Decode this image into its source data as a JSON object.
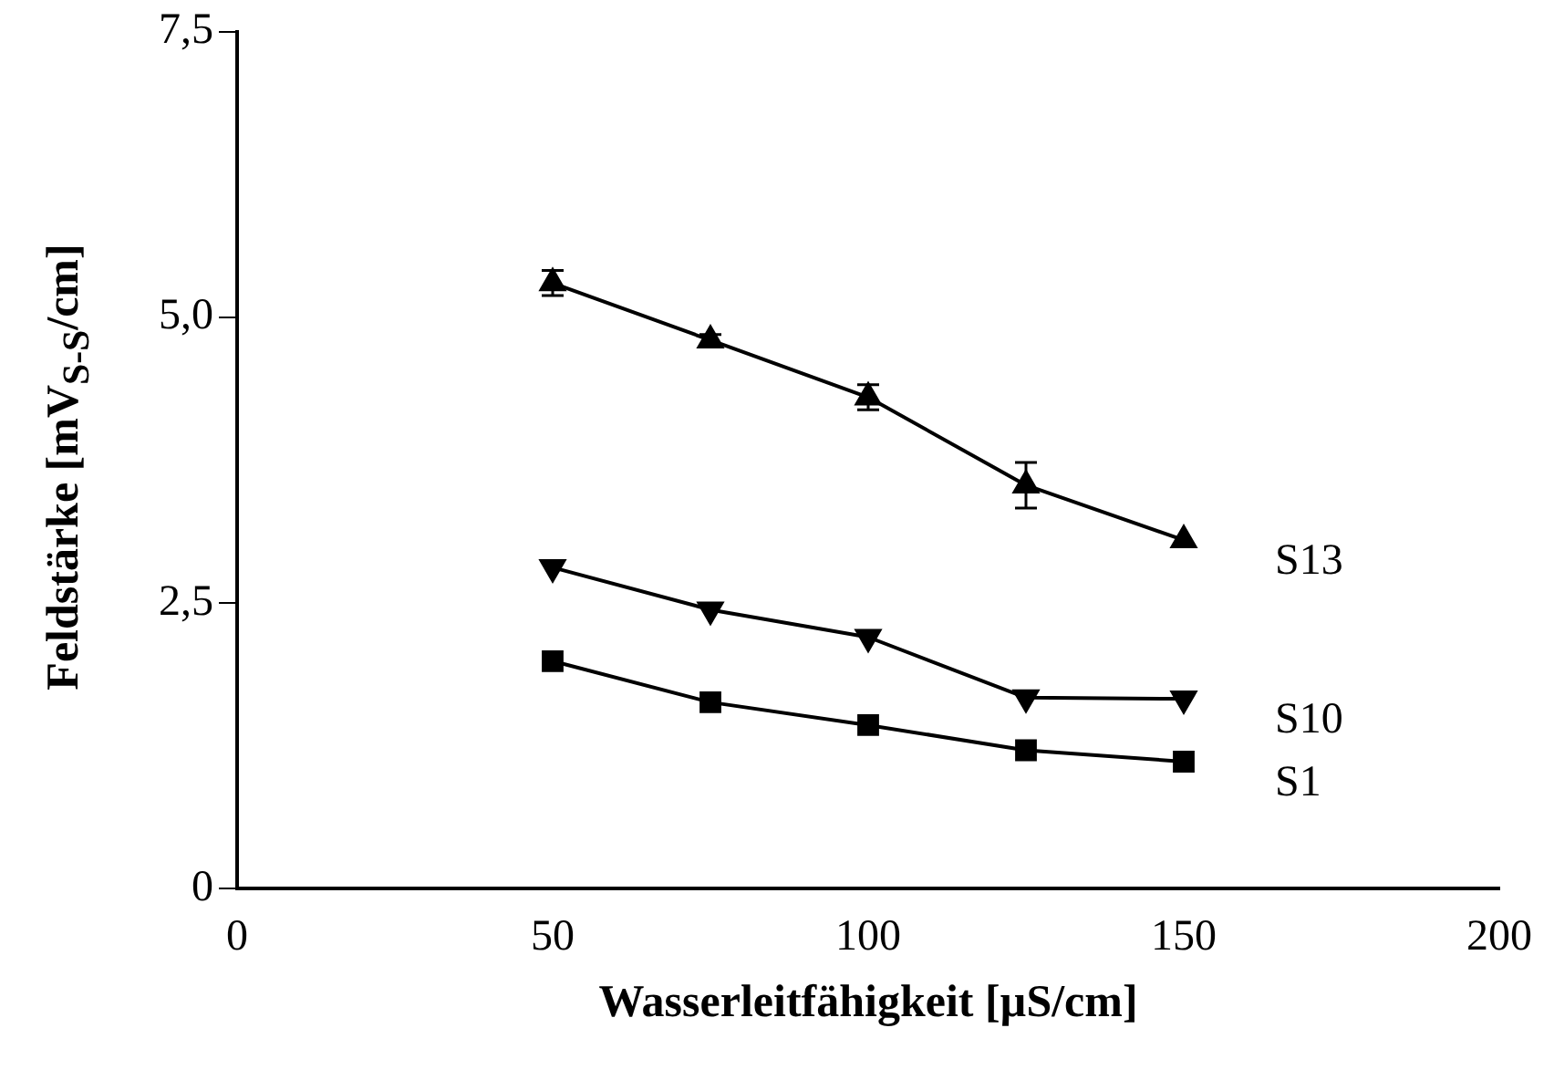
{
  "chart_data": {
    "type": "line",
    "xlabel": "Wasserleitfähigkeit [µS/cm]",
    "ylabel": "Feldstärke [mV$_{S-S}$/cm]",
    "x": [
      50,
      75,
      100,
      125,
      150
    ],
    "series": [
      {
        "name": "S13",
        "color": "#000000",
        "marker": "triangle",
        "values": [
          5.3,
          4.8,
          4.3,
          3.53,
          3.05
        ],
        "errors": [
          0.11,
          0.05,
          0.11,
          0.2,
          null
        ]
      },
      {
        "name": "S10",
        "color": "#000000",
        "marker": "triangle-down",
        "values": [
          2.81,
          2.44,
          2.2,
          1.67,
          1.66
        ]
      },
      {
        "name": "S1",
        "color": "#000000",
        "marker": "square",
        "values": [
          1.99,
          1.63,
          1.43,
          1.21,
          1.11
        ]
      }
    ],
    "xlim": [
      0,
      200
    ],
    "xticks": [
      0,
      50,
      100,
      150,
      200
    ],
    "ylim": [
      0,
      7.5
    ],
    "yticks": [
      {
        "value": 0,
        "label": "0"
      },
      {
        "value": 2.5,
        "label": "2,5"
      },
      {
        "value": 5,
        "label": "5,0"
      },
      {
        "value": 7.5,
        "label": "7,5"
      }
    ],
    "grid": false,
    "legend": false
  }
}
